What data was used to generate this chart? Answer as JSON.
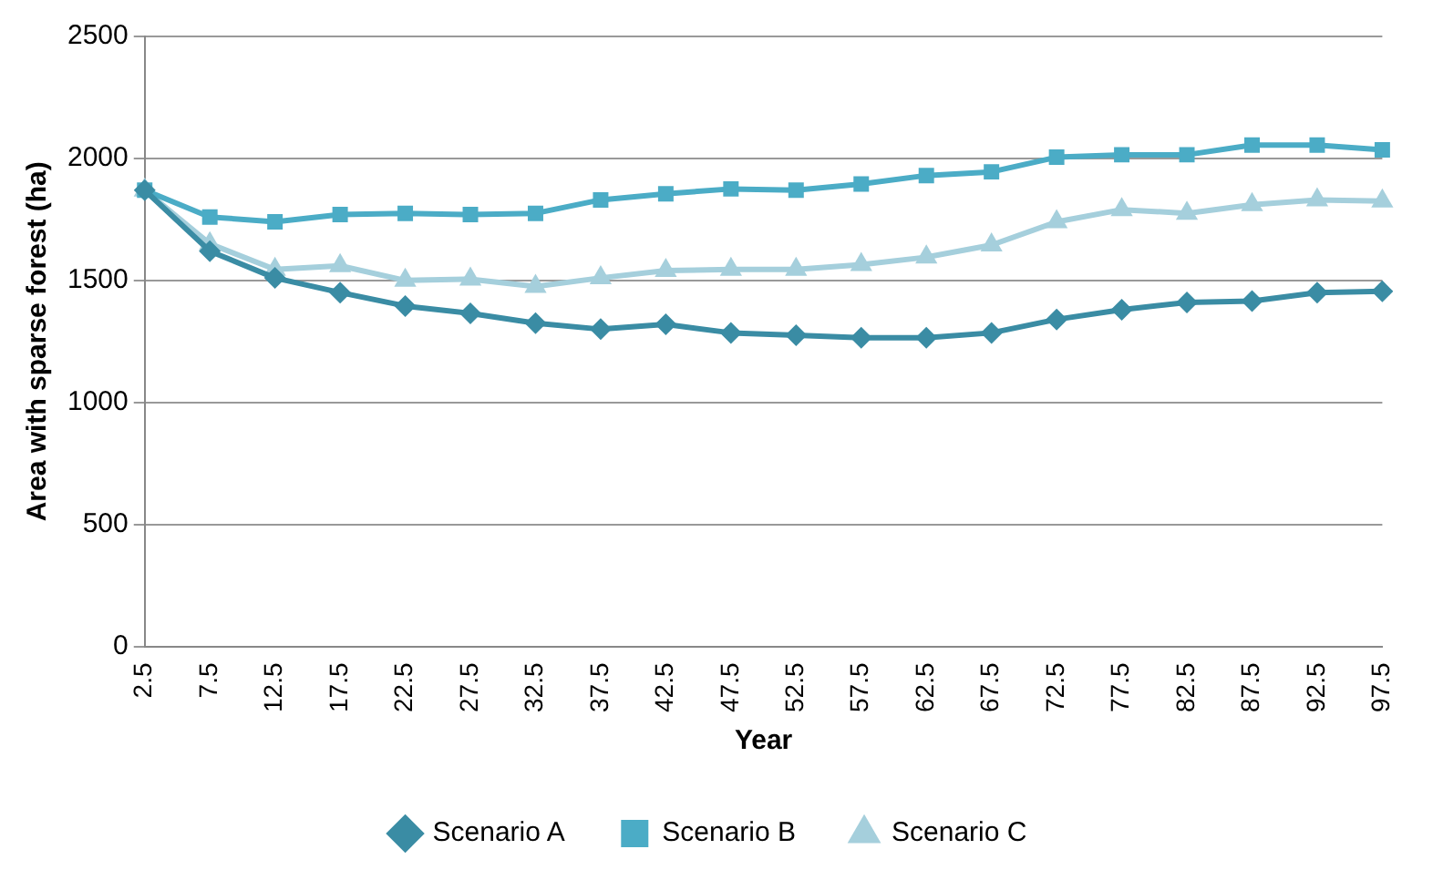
{
  "chart_data": {
    "type": "line",
    "xlabel": "Year",
    "ylabel": "Area with sparse forest (ha)",
    "categories": [
      "2.5",
      "7.5",
      "12.5",
      "17.5",
      "22.5",
      "27.5",
      "32.5",
      "37.5",
      "42.5",
      "47.5",
      "52.5",
      "57.5",
      "62.5",
      "67.5",
      "72.5",
      "77.5",
      "82.5",
      "87.5",
      "92.5",
      "97.5"
    ],
    "ylim": [
      0,
      2500
    ],
    "yticks": [
      0,
      500,
      1000,
      1500,
      2000,
      2500
    ],
    "grid": "y",
    "legend": "bottom",
    "line_style": "solid",
    "series": [
      {
        "name": "Scenario A",
        "color": "#3a8ca4",
        "marker": "diamond",
        "values": [
          1870,
          1620,
          1510,
          1450,
          1395,
          1365,
          1325,
          1300,
          1320,
          1285,
          1275,
          1265,
          1265,
          1285,
          1340,
          1380,
          1410,
          1415,
          1450,
          1455
        ]
      },
      {
        "name": "Scenario B",
        "color": "#4bacc6",
        "marker": "square",
        "values": [
          1870,
          1760,
          1740,
          1770,
          1775,
          1770,
          1775,
          1830,
          1855,
          1875,
          1870,
          1895,
          1930,
          1945,
          2005,
          2015,
          2015,
          2055,
          2055,
          2035
        ]
      },
      {
        "name": "Scenario C",
        "color": "#a5cfdc",
        "marker": "triangle",
        "values": [
          1870,
          1650,
          1545,
          1560,
          1500,
          1505,
          1475,
          1510,
          1540,
          1545,
          1545,
          1565,
          1595,
          1645,
          1740,
          1790,
          1775,
          1810,
          1830,
          1825
        ]
      }
    ]
  }
}
